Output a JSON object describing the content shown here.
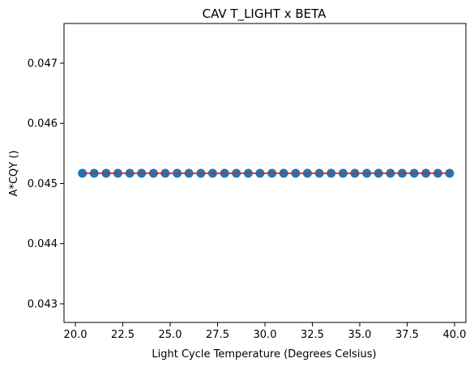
{
  "chart_data": {
    "type": "scatter",
    "title": "CAV T_LIGHT x BETA",
    "xlabel": "Light Cycle Temperature (Degrees Celsius)",
    "ylabel": "A*CQY ()",
    "xlim": [
      19.4,
      40.6
    ],
    "ylim": [
      0.04269,
      0.04766
    ],
    "xticks": [
      20.0,
      22.5,
      25.0,
      27.5,
      30.0,
      32.5,
      35.0,
      37.5,
      40.0
    ],
    "xtick_labels": [
      "20.0",
      "22.5",
      "25.0",
      "27.5",
      "30.0",
      "32.5",
      "35.0",
      "37.5",
      "40.0"
    ],
    "yticks": [
      0.043,
      0.044,
      0.045,
      0.046,
      0.047
    ],
    "ytick_labels": [
      "0.043",
      "0.044",
      "0.045",
      "0.046",
      "0.047"
    ],
    "grid": false,
    "series": [
      {
        "kind": "scatter",
        "color": "#1f77b4",
        "x": [
          20.37,
          20.99,
          21.62,
          22.24,
          22.87,
          23.49,
          24.12,
          24.74,
          25.37,
          25.99,
          26.62,
          27.24,
          27.87,
          28.49,
          29.12,
          29.74,
          30.37,
          30.99,
          31.62,
          32.24,
          32.87,
          33.49,
          34.12,
          34.74,
          35.37,
          35.99,
          36.62,
          37.24,
          37.87,
          38.49,
          39.12,
          39.74
        ],
        "y": [
          0.04517,
          0.04517,
          0.04517,
          0.04517,
          0.04517,
          0.04517,
          0.04517,
          0.04517,
          0.04517,
          0.04517,
          0.04517,
          0.04517,
          0.04517,
          0.04517,
          0.04517,
          0.04517,
          0.04517,
          0.04517,
          0.04517,
          0.04517,
          0.04517,
          0.04517,
          0.04517,
          0.04517,
          0.04517,
          0.04517,
          0.04517,
          0.04517,
          0.04517,
          0.04517,
          0.04517,
          0.04517
        ]
      },
      {
        "kind": "line",
        "color": "#d62728",
        "x": [
          20.37,
          39.74
        ],
        "y": [
          0.04517,
          0.04517
        ]
      }
    ]
  }
}
